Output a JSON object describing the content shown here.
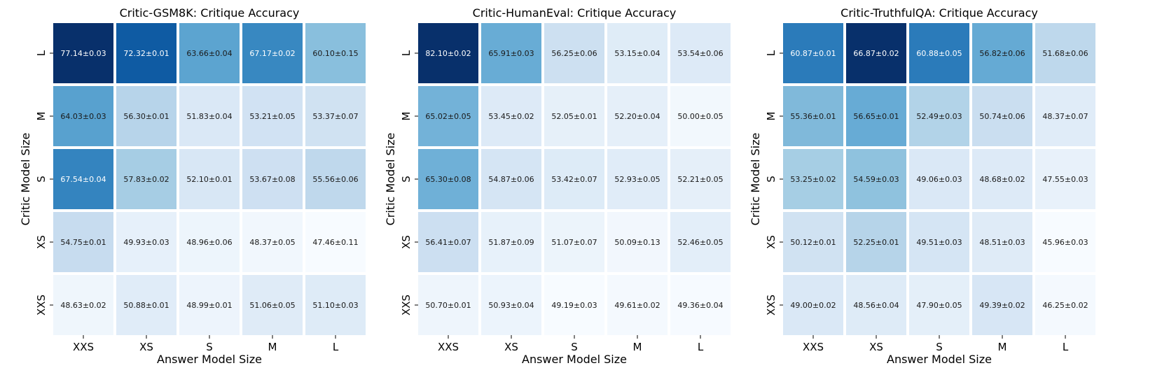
{
  "chart_data": [
    {
      "type": "heatmap",
      "title": "Critic-GSM8K: Critique Accuracy",
      "xlabel": "Answer Model Size",
      "ylabel": "Critic Model Size",
      "x_categories": [
        "XXS",
        "XS",
        "S",
        "M",
        "L"
      ],
      "y_categories": [
        "L",
        "M",
        "S",
        "XS",
        "XXS"
      ],
      "values": [
        [
          77.14,
          72.32,
          63.66,
          67.17,
          60.1
        ],
        [
          64.03,
          56.3,
          51.83,
          53.21,
          53.37
        ],
        [
          67.54,
          57.83,
          52.1,
          53.67,
          55.56
        ],
        [
          54.75,
          49.93,
          48.96,
          48.37,
          47.46
        ],
        [
          48.63,
          50.88,
          48.99,
          51.06,
          51.1
        ]
      ],
      "labels": [
        [
          "77.14±0.03",
          "72.32±0.01",
          "63.66±0.04",
          "67.17±0.02",
          "60.10±0.15"
        ],
        [
          "64.03±0.03",
          "56.30±0.01",
          "51.83±0.04",
          "53.21±0.05",
          "53.37±0.07"
        ],
        [
          "67.54±0.04",
          "57.83±0.02",
          "52.10±0.01",
          "53.67±0.08",
          "55.56±0.06"
        ],
        [
          "54.75±0.01",
          "49.93±0.03",
          "48.96±0.06",
          "48.37±0.05",
          "47.46±0.11"
        ],
        [
          "48.63±0.02",
          "50.88±0.01",
          "48.99±0.01",
          "51.06±0.05",
          "51.10±0.03"
        ]
      ]
    },
    {
      "type": "heatmap",
      "title": "Critic-HumanEval: Critique Accuracy",
      "xlabel": "Answer Model Size",
      "ylabel": "Critic Model Size",
      "x_categories": [
        "XXS",
        "XS",
        "S",
        "M",
        "L"
      ],
      "y_categories": [
        "L",
        "M",
        "S",
        "XS",
        "XXS"
      ],
      "values": [
        [
          82.1,
          65.91,
          56.25,
          53.15,
          53.54
        ],
        [
          65.02,
          53.45,
          52.05,
          52.2,
          50.0
        ],
        [
          65.3,
          54.87,
          53.42,
          52.93,
          52.21
        ],
        [
          56.41,
          51.87,
          51.07,
          50.09,
          52.46
        ],
        [
          50.7,
          50.93,
          49.19,
          49.61,
          49.36
        ]
      ],
      "labels": [
        [
          "82.10±0.02",
          "65.91±0.03",
          "56.25±0.06",
          "53.15±0.04",
          "53.54±0.06"
        ],
        [
          "65.02±0.05",
          "53.45±0.02",
          "52.05±0.01",
          "52.20±0.04",
          "50.00±0.05"
        ],
        [
          "65.30±0.08",
          "54.87±0.06",
          "53.42±0.07",
          "52.93±0.05",
          "52.21±0.05"
        ],
        [
          "56.41±0.07",
          "51.87±0.09",
          "51.07±0.07",
          "50.09±0.13",
          "52.46±0.05"
        ],
        [
          "50.70±0.01",
          "50.93±0.04",
          "49.19±0.03",
          "49.61±0.02",
          "49.36±0.04"
        ]
      ]
    },
    {
      "type": "heatmap",
      "title": "Critic-TruthfulQA: Critique Accuracy",
      "xlabel": "Answer Model Size",
      "ylabel": "Critic Model Size",
      "x_categories": [
        "XXS",
        "XS",
        "S",
        "M",
        "L"
      ],
      "y_categories": [
        "L",
        "M",
        "S",
        "XS",
        "XXS"
      ],
      "values": [
        [
          60.87,
          66.87,
          60.88,
          56.82,
          51.68
        ],
        [
          55.36,
          56.65,
          52.49,
          50.74,
          48.37
        ],
        [
          53.25,
          54.59,
          49.06,
          48.68,
          47.55
        ],
        [
          50.12,
          52.25,
          49.51,
          48.51,
          45.96
        ],
        [
          49.0,
          48.56,
          47.9,
          49.39,
          46.25
        ]
      ],
      "labels": [
        [
          "60.87±0.01",
          "66.87±0.02",
          "60.88±0.05",
          "56.82±0.06",
          "51.68±0.06"
        ],
        [
          "55.36±0.01",
          "56.65±0.01",
          "52.49±0.03",
          "50.74±0.06",
          "48.37±0.07"
        ],
        [
          "53.25±0.02",
          "54.59±0.03",
          "49.06±0.03",
          "48.68±0.02",
          "47.55±0.03"
        ],
        [
          "50.12±0.01",
          "52.25±0.01",
          "49.51±0.03",
          "48.51±0.03",
          "45.96±0.03"
        ],
        [
          "49.00±0.02",
          "48.56±0.04",
          "47.90±0.05",
          "49.39±0.02",
          "46.25±0.02"
        ]
      ]
    }
  ]
}
